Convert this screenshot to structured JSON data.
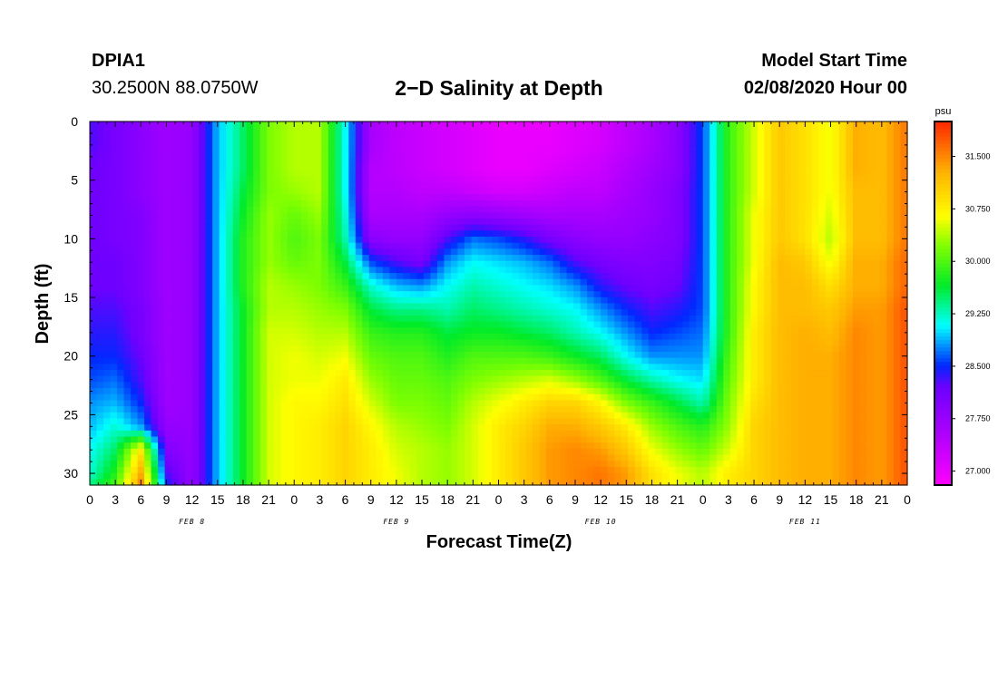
{
  "header": {
    "station_id": "DPIA1",
    "coordinates": "30.2500N 88.0750W",
    "title": "2−D Salinity at Depth",
    "model_start_label": "Model Start Time",
    "model_start_value": "02/08/2020 Hour 00"
  },
  "chart_data": {
    "type": "heatmap",
    "title": "2−D Salinity at Depth",
    "xlabel": "Forecast Time(Z)",
    "ylabel": "Depth (ft)",
    "x_unit": "hours since model start",
    "xlim": [
      0,
      96
    ],
    "ylim": [
      0,
      31
    ],
    "y_inverted": true,
    "x_ticks": [
      "0",
      "3",
      "6",
      "9",
      "12",
      "15",
      "18",
      "21",
      "0",
      "3",
      "6",
      "9",
      "12",
      "15",
      "18",
      "21",
      "0",
      "3",
      "6",
      "9",
      "12",
      "15",
      "18",
      "21",
      "0",
      "3",
      "6",
      "9",
      "12",
      "15",
      "18",
      "21",
      "0"
    ],
    "y_ticks": [
      0,
      5,
      10,
      15,
      20,
      25,
      30
    ],
    "date_labels": [
      {
        "hour": 12,
        "text": "FEB 8"
      },
      {
        "hour": 36,
        "text": "FEB 9"
      },
      {
        "hour": 60,
        "text": "FEB 10"
      },
      {
        "hour": 84,
        "text": "FEB 11"
      }
    ],
    "colorbar": {
      "unit": "psu",
      "min": 26.8,
      "max": 32.0,
      "ticks": [
        "27.000",
        "27.750",
        "28.500",
        "29.250",
        "30.000",
        "30.750",
        "31.500"
      ],
      "tick_values": [
        27.0,
        27.75,
        28.5,
        29.25,
        30.0,
        30.75,
        31.5
      ]
    },
    "depths_ft": [
      0,
      2,
      4,
      6,
      8,
      10,
      12,
      14,
      16,
      18,
      20,
      22,
      24,
      26,
      28,
      30,
      31
    ],
    "hours": [
      0,
      3,
      6,
      9,
      12,
      15,
      18,
      21,
      24,
      27,
      30,
      33,
      36,
      39,
      42,
      45,
      48,
      51,
      54,
      57,
      60,
      63,
      66,
      69,
      72,
      75,
      78,
      81,
      84,
      87,
      90,
      93,
      96
    ],
    "salinity_psu": [
      [
        28.3,
        28.3,
        28.2,
        28.2,
        28.2,
        28.2,
        28.2,
        28.2,
        28.3,
        28.4,
        28.5,
        28.6,
        28.8,
        28.9,
        29.1,
        29.2,
        29.4
      ],
      [
        28.1,
        28.1,
        28.1,
        28.1,
        28.1,
        28.1,
        28.2,
        28.2,
        28.3,
        28.4,
        28.5,
        28.7,
        28.9,
        29.2,
        29.5,
        29.8,
        30.0
      ],
      [
        27.9,
        27.9,
        27.9,
        27.9,
        28.0,
        28.0,
        28.0,
        28.0,
        28.1,
        28.1,
        28.2,
        28.3,
        28.5,
        28.8,
        30.8,
        31.3,
        31.5
      ],
      [
        27.7,
        27.7,
        27.7,
        27.7,
        27.7,
        27.7,
        27.7,
        27.7,
        27.7,
        27.7,
        27.7,
        27.7,
        27.7,
        27.8,
        28.0,
        28.3,
        28.5
      ],
      [
        27.8,
        27.8,
        27.8,
        27.8,
        27.8,
        27.8,
        27.8,
        27.8,
        27.8,
        27.8,
        27.8,
        27.8,
        27.8,
        27.8,
        27.8,
        27.8,
        27.8
      ],
      [
        28.9,
        28.9,
        28.9,
        28.9,
        28.9,
        28.9,
        28.9,
        28.9,
        28.9,
        28.9,
        28.9,
        28.9,
        28.9,
        28.9,
        28.9,
        28.9,
        28.9
      ],
      [
        29.5,
        29.5,
        29.5,
        29.6,
        29.7,
        29.8,
        29.8,
        29.8,
        29.7,
        29.7,
        29.7,
        29.7,
        29.7,
        29.7,
        29.7,
        29.7,
        29.7
      ],
      [
        30.2,
        30.2,
        30.2,
        30.2,
        30.3,
        30.3,
        30.3,
        30.4,
        30.4,
        30.5,
        30.5,
        30.5,
        30.5,
        30.5,
        30.5,
        30.5,
        30.5
      ],
      [
        30.4,
        30.4,
        30.4,
        30.3,
        30.1,
        30.0,
        30.1,
        30.3,
        30.4,
        30.5,
        30.6,
        30.6,
        30.7,
        30.7,
        30.7,
        30.7,
        30.7
      ],
      [
        30.4,
        30.4,
        30.4,
        30.4,
        30.3,
        30.2,
        30.2,
        30.2,
        30.3,
        30.4,
        30.5,
        30.6,
        30.7,
        30.8,
        30.8,
        30.8,
        30.8
      ],
      [
        29.1,
        29.1,
        29.1,
        29.1,
        29.2,
        29.3,
        29.6,
        29.9,
        30.2,
        30.4,
        30.6,
        30.8,
        30.9,
        31.0,
        31.0,
        31.0,
        31.0
      ],
      [
        27.6,
        27.6,
        27.5,
        27.5,
        27.6,
        27.9,
        28.6,
        29.2,
        29.6,
        29.9,
        30.1,
        30.3,
        30.5,
        30.7,
        30.8,
        30.8,
        30.8
      ],
      [
        27.4,
        27.4,
        27.4,
        27.5,
        27.6,
        27.8,
        28.3,
        28.9,
        29.4,
        29.8,
        30.0,
        30.1,
        30.2,
        30.4,
        30.5,
        30.6,
        30.6
      ],
      [
        27.3,
        27.3,
        27.3,
        27.4,
        27.6,
        27.8,
        28.1,
        28.8,
        29.4,
        29.8,
        30.0,
        30.1,
        30.2,
        30.3,
        30.4,
        30.4,
        30.4
      ],
      [
        27.2,
        27.2,
        27.2,
        27.4,
        27.8,
        28.3,
        28.8,
        29.1,
        29.3,
        29.6,
        29.8,
        30.0,
        30.1,
        30.2,
        30.3,
        30.3,
        30.3
      ],
      [
        27.1,
        27.1,
        27.1,
        27.3,
        27.9,
        28.7,
        29.1,
        29.3,
        29.5,
        29.7,
        30.0,
        30.2,
        30.4,
        30.5,
        30.5,
        30.5,
        30.5
      ],
      [
        27.0,
        27.0,
        27.0,
        27.2,
        27.8,
        28.6,
        29.0,
        29.2,
        29.4,
        29.7,
        30.0,
        30.3,
        30.6,
        30.8,
        30.8,
        30.8,
        30.8
      ],
      [
        27.0,
        27.0,
        27.0,
        27.2,
        27.7,
        28.4,
        28.9,
        29.1,
        29.3,
        29.6,
        30.0,
        30.4,
        30.8,
        31.0,
        31.1,
        31.1,
        31.1
      ],
      [
        27.0,
        27.0,
        27.1,
        27.3,
        27.6,
        28.1,
        28.7,
        29.0,
        29.2,
        29.5,
        29.9,
        30.5,
        31.0,
        31.3,
        31.4,
        31.4,
        31.4
      ],
      [
        27.1,
        27.1,
        27.2,
        27.4,
        27.6,
        27.9,
        28.3,
        28.8,
        29.1,
        29.3,
        29.7,
        30.3,
        31.0,
        31.3,
        31.5,
        31.5,
        31.5
      ],
      [
        27.2,
        27.2,
        27.3,
        27.4,
        27.6,
        27.8,
        28.1,
        28.4,
        28.8,
        29.1,
        29.5,
        30.0,
        30.7,
        31.1,
        31.4,
        31.6,
        31.6
      ],
      [
        27.4,
        27.4,
        27.5,
        27.6,
        27.7,
        27.8,
        28.0,
        28.2,
        28.5,
        28.8,
        29.1,
        29.6,
        30.2,
        30.8,
        31.1,
        31.4,
        31.4
      ],
      [
        27.6,
        27.6,
        27.7,
        27.8,
        27.8,
        27.9,
        28.0,
        28.1,
        28.3,
        28.5,
        28.8,
        29.3,
        29.9,
        30.3,
        30.6,
        30.9,
        30.9
      ],
      [
        27.9,
        27.9,
        27.9,
        28.0,
        28.0,
        28.0,
        28.1,
        28.2,
        28.4,
        28.6,
        28.8,
        29.1,
        29.6,
        30.0,
        30.3,
        30.6,
        30.6
      ],
      [
        28.6,
        28.6,
        28.6,
        28.6,
        28.6,
        28.6,
        28.6,
        28.6,
        28.6,
        28.7,
        28.8,
        29.0,
        29.3,
        29.8,
        30.1,
        30.4,
        30.4
      ],
      [
        29.9,
        29.9,
        29.9,
        29.9,
        29.9,
        29.9,
        29.9,
        29.9,
        29.9,
        29.9,
        30.0,
        30.1,
        30.2,
        30.3,
        30.5,
        30.8,
        30.8
      ],
      [
        30.5,
        30.5,
        30.5,
        30.5,
        30.6,
        30.6,
        30.6,
        30.7,
        30.7,
        30.8,
        30.8,
        30.8,
        30.9,
        31.0,
        31.0,
        31.0,
        31.0
      ],
      [
        31.1,
        31.1,
        31.1,
        31.1,
        31.1,
        31.1,
        31.2,
        31.2,
        31.2,
        31.2,
        31.2,
        31.2,
        31.2,
        31.2,
        31.2,
        31.2,
        31.2
      ],
      [
        30.9,
        30.9,
        30.9,
        30.9,
        30.9,
        30.9,
        31.1,
        31.2,
        31.2,
        31.3,
        31.3,
        31.3,
        31.3,
        31.3,
        31.3,
        31.3,
        31.3
      ],
      [
        30.6,
        30.6,
        30.6,
        30.6,
        30.5,
        30.4,
        30.6,
        30.9,
        31.1,
        31.2,
        31.3,
        31.3,
        31.3,
        31.3,
        31.3,
        31.3,
        31.3
      ],
      [
        31.3,
        31.3,
        31.3,
        31.2,
        31.2,
        31.2,
        31.3,
        31.3,
        31.4,
        31.5,
        31.5,
        31.5,
        31.5,
        31.5,
        31.5,
        31.5,
        31.5
      ],
      [
        31.2,
        31.2,
        31.2,
        31.2,
        31.2,
        31.2,
        31.3,
        31.3,
        31.4,
        31.4,
        31.4,
        31.4,
        31.4,
        31.4,
        31.4,
        31.4,
        31.4
      ],
      [
        31.6,
        31.6,
        31.6,
        31.6,
        31.6,
        31.6,
        31.7,
        31.7,
        31.8,
        31.8,
        31.8,
        31.8,
        31.8,
        31.8,
        31.8,
        31.8,
        31.8
      ]
    ]
  }
}
